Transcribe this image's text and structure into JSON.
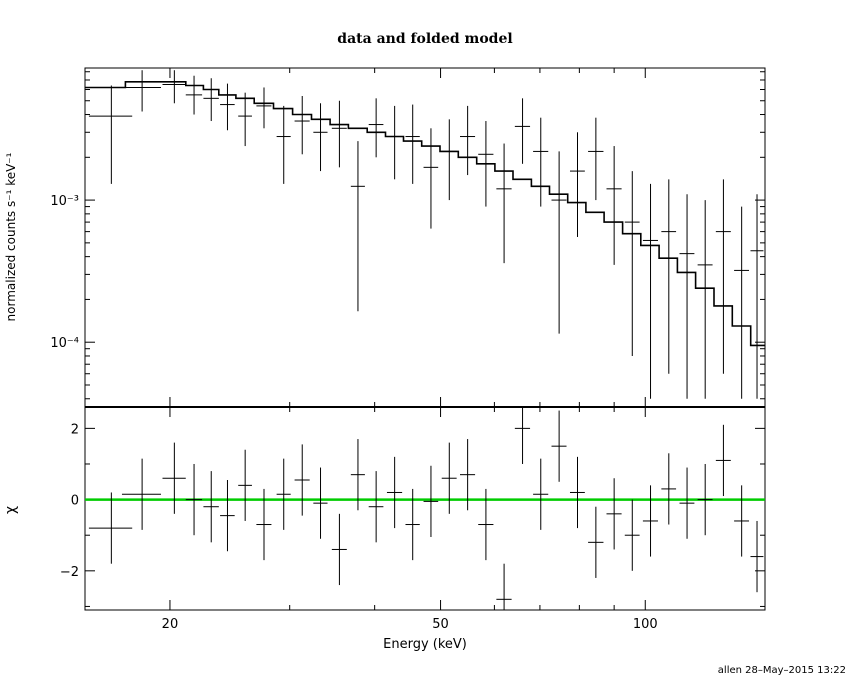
{
  "chart_data": {
    "title": "data and folded model",
    "xlabel": "Energy (keV)",
    "x_scale": "log",
    "xlim": [
      15,
      150
    ],
    "x_ticks": [
      {
        "value": 20,
        "label": "20"
      },
      {
        "value": 50,
        "label": "50"
      },
      {
        "value": 100,
        "label": "100"
      }
    ],
    "panels": [
      {
        "name": "spectrum",
        "type": "line",
        "ylabel": "normalized counts s⁻¹ keV⁻¹",
        "y_scale": "log",
        "ylim": [
          3.5e-05,
          0.0085
        ],
        "y_ticks": [
          {
            "value": 0.001,
            "label": "10⁻³"
          },
          {
            "value": 0.0001,
            "label": "10⁻⁴"
          }
        ],
        "data_points": [
          {
            "x": 16.4,
            "xerr": 1.2,
            "y": 0.0039,
            "ylo": 0.0013,
            "yhi": 0.0064
          },
          {
            "x": 18.2,
            "xerr": 1.2,
            "y": 0.0062,
            "ylo": 0.0042,
            "yhi": 0.0082
          },
          {
            "x": 20.3,
            "xerr": 0.8,
            "y": 0.0065,
            "ylo": 0.0048,
            "yhi": 0.0082
          },
          {
            "x": 21.7,
            "xerr": 0.6,
            "y": 0.0055,
            "ylo": 0.004,
            "yhi": 0.0075
          },
          {
            "x": 23.0,
            "xerr": 0.6,
            "y": 0.0052,
            "ylo": 0.0036,
            "yhi": 0.0072
          },
          {
            "x": 24.3,
            "xerr": 0.6,
            "y": 0.0047,
            "ylo": 0.0031,
            "yhi": 0.0066
          },
          {
            "x": 25.8,
            "xerr": 0.6,
            "y": 0.0039,
            "ylo": 0.0024,
            "yhi": 0.0057
          },
          {
            "x": 27.5,
            "xerr": 0.7,
            "y": 0.0046,
            "ylo": 0.0032,
            "yhi": 0.0062
          },
          {
            "x": 29.4,
            "xerr": 0.7,
            "y": 0.0028,
            "ylo": 0.0013,
            "yhi": 0.0046
          },
          {
            "x": 31.3,
            "xerr": 0.8,
            "y": 0.0036,
            "ylo": 0.0021,
            "yhi": 0.0054
          },
          {
            "x": 33.3,
            "xerr": 0.8,
            "y": 0.003,
            "ylo": 0.0016,
            "yhi": 0.0048
          },
          {
            "x": 35.5,
            "xerr": 0.9,
            "y": 0.0032,
            "ylo": 0.0017,
            "yhi": 0.005
          },
          {
            "x": 37.8,
            "xerr": 0.9,
            "y": 0.00125,
            "ylo": 0.000165,
            "yhi": 0.0026
          },
          {
            "x": 40.2,
            "xerr": 1.0,
            "y": 0.0034,
            "ylo": 0.002,
            "yhi": 0.0052
          },
          {
            "x": 42.8,
            "xerr": 1.1,
            "y": 0.0028,
            "ylo": 0.0014,
            "yhi": 0.0046
          },
          {
            "x": 45.5,
            "xerr": 1.1,
            "y": 0.0028,
            "ylo": 0.0013,
            "yhi": 0.0047
          },
          {
            "x": 48.4,
            "xerr": 1.2,
            "y": 0.0017,
            "ylo": 0.00063,
            "yhi": 0.0032
          },
          {
            "x": 51.5,
            "xerr": 1.3,
            "y": 0.0022,
            "ylo": 0.001,
            "yhi": 0.0037
          },
          {
            "x": 54.8,
            "xerr": 1.4,
            "y": 0.0028,
            "ylo": 0.0015,
            "yhi": 0.0046
          },
          {
            "x": 58.3,
            "xerr": 1.5,
            "y": 0.0021,
            "ylo": 0.0009,
            "yhi": 0.0036
          },
          {
            "x": 62.0,
            "xerr": 1.6,
            "y": 0.0012,
            "ylo": 0.00036,
            "yhi": 0.0025
          },
          {
            "x": 66.0,
            "xerr": 1.7,
            "y": 0.0033,
            "ylo": 0.0018,
            "yhi": 0.0052
          },
          {
            "x": 70.2,
            "xerr": 1.8,
            "y": 0.0022,
            "ylo": 0.0009,
            "yhi": 0.0038
          },
          {
            "x": 74.7,
            "xerr": 1.9,
            "y": 0.001,
            "ylo": 0.000115,
            "yhi": 0.0022
          },
          {
            "x": 79.5,
            "xerr": 2.0,
            "y": 0.0016,
            "ylo": 0.00055,
            "yhi": 0.003
          },
          {
            "x": 84.6,
            "xerr": 2.2,
            "y": 0.0022,
            "ylo": 0.001,
            "yhi": 0.0038
          },
          {
            "x": 90.0,
            "xerr": 2.3,
            "y": 0.0012,
            "ylo": 0.00035,
            "yhi": 0.0024
          },
          {
            "x": 95.7,
            "xerr": 2.4,
            "y": 0.0007,
            "ylo": 8e-05,
            "yhi": 0.0016
          },
          {
            "x": 101.8,
            "xerr": 2.6,
            "y": 0.00052,
            "ylo": 4e-05,
            "yhi": 0.0013
          },
          {
            "x": 108.3,
            "xerr": 2.7,
            "y": 0.0006,
            "ylo": 6e-05,
            "yhi": 0.0014
          },
          {
            "x": 115.2,
            "xerr": 2.9,
            "y": 0.00042,
            "ylo": 4e-05,
            "yhi": 0.0011
          },
          {
            "x": 122.5,
            "xerr": 3.1,
            "y": 0.00035,
            "ylo": 4e-05,
            "yhi": 0.001
          },
          {
            "x": 130.3,
            "xerr": 3.3,
            "y": 0.0006,
            "ylo": 6e-05,
            "yhi": 0.0014
          },
          {
            "x": 138.6,
            "xerr": 3.5,
            "y": 0.00032,
            "ylo": 4e-05,
            "yhi": 0.0009
          },
          {
            "x": 146.0,
            "xerr": 3.2,
            "y": 0.00044,
            "ylo": 4e-05,
            "yhi": 0.0011
          }
        ],
        "model_steps": [
          {
            "x": 15.0,
            "y": 0.0062
          },
          {
            "x": 17.2,
            "y": 0.0068
          },
          {
            "x": 19.5,
            "y": 0.0068
          },
          {
            "x": 21.1,
            "y": 0.0064
          },
          {
            "x": 22.4,
            "y": 0.006
          },
          {
            "x": 23.6,
            "y": 0.0055
          },
          {
            "x": 25.0,
            "y": 0.0052
          },
          {
            "x": 26.6,
            "y": 0.0048
          },
          {
            "x": 28.4,
            "y": 0.0044
          },
          {
            "x": 30.3,
            "y": 0.004
          },
          {
            "x": 32.3,
            "y": 0.0037
          },
          {
            "x": 34.4,
            "y": 0.0034
          },
          {
            "x": 36.6,
            "y": 0.0032
          },
          {
            "x": 39.0,
            "y": 0.003
          },
          {
            "x": 41.5,
            "y": 0.0028
          },
          {
            "x": 44.1,
            "y": 0.0026
          },
          {
            "x": 46.9,
            "y": 0.0024
          },
          {
            "x": 49.9,
            "y": 0.0022
          },
          {
            "x": 53.1,
            "y": 0.002
          },
          {
            "x": 56.5,
            "y": 0.0018
          },
          {
            "x": 60.1,
            "y": 0.0016
          },
          {
            "x": 63.9,
            "y": 0.0014
          },
          {
            "x": 68.0,
            "y": 0.00125
          },
          {
            "x": 72.3,
            "y": 0.0011
          },
          {
            "x": 76.9,
            "y": 0.00096
          },
          {
            "x": 81.8,
            "y": 0.00082
          },
          {
            "x": 87.0,
            "y": 0.0007
          },
          {
            "x": 92.6,
            "y": 0.00058
          },
          {
            "x": 98.5,
            "y": 0.00048
          },
          {
            "x": 104.8,
            "y": 0.00039
          },
          {
            "x": 111.5,
            "y": 0.00031
          },
          {
            "x": 118.6,
            "y": 0.00024
          },
          {
            "x": 126.2,
            "y": 0.00018
          },
          {
            "x": 134.3,
            "y": 0.00013
          },
          {
            "x": 142.9,
            "y": 9.5e-05
          },
          {
            "x": 150.0,
            "y": 7.5e-05
          }
        ]
      },
      {
        "name": "residuals",
        "type": "scatter",
        "ylabel": "χ",
        "y_scale": "linear",
        "ylim": [
          -3.1,
          2.6
        ],
        "y_ticks": [
          {
            "value": 2,
            "label": "2"
          },
          {
            "value": 0,
            "label": "0"
          },
          {
            "value": -2,
            "label": "−2"
          }
        ],
        "zero_line_color": "#00cc00",
        "data_points": [
          {
            "x": 16.4,
            "xerr": 1.2,
            "y": -0.8
          },
          {
            "x": 18.2,
            "xerr": 1.2,
            "y": 0.15
          },
          {
            "x": 20.3,
            "xerr": 0.8,
            "y": 0.6
          },
          {
            "x": 21.7,
            "xerr": 0.6,
            "y": 0.0
          },
          {
            "x": 23.0,
            "xerr": 0.6,
            "y": -0.2
          },
          {
            "x": 24.3,
            "xerr": 0.6,
            "y": -0.45
          },
          {
            "x": 25.8,
            "xerr": 0.6,
            "y": 0.4
          },
          {
            "x": 27.5,
            "xerr": 0.7,
            "y": -0.7
          },
          {
            "x": 29.4,
            "xerr": 0.7,
            "y": 0.15
          },
          {
            "x": 31.3,
            "xerr": 0.8,
            "y": 0.55
          },
          {
            "x": 33.3,
            "xerr": 0.8,
            "y": -0.1
          },
          {
            "x": 35.5,
            "xerr": 0.9,
            "y": -1.4
          },
          {
            "x": 37.8,
            "xerr": 0.9,
            "y": 0.7
          },
          {
            "x": 40.2,
            "xerr": 1.0,
            "y": -0.2
          },
          {
            "x": 42.8,
            "xerr": 1.1,
            "y": 0.2
          },
          {
            "x": 45.5,
            "xerr": 1.1,
            "y": -0.7
          },
          {
            "x": 48.4,
            "xerr": 1.2,
            "y": -0.05
          },
          {
            "x": 51.5,
            "xerr": 1.3,
            "y": 0.6
          },
          {
            "x": 54.8,
            "xerr": 1.4,
            "y": 0.7
          },
          {
            "x": 58.3,
            "xerr": 1.5,
            "y": -0.7
          },
          {
            "x": 62.0,
            "xerr": 1.6,
            "y": -2.8
          },
          {
            "x": 66.0,
            "xerr": 1.7,
            "y": 2.0
          },
          {
            "x": 70.2,
            "xerr": 1.8,
            "y": 0.15
          },
          {
            "x": 74.7,
            "xerr": 1.9,
            "y": 1.5
          },
          {
            "x": 79.5,
            "xerr": 2.0,
            "y": 0.2
          },
          {
            "x": 84.6,
            "xerr": 2.2,
            "y": -1.2
          },
          {
            "x": 90.0,
            "xerr": 2.3,
            "y": -0.4
          },
          {
            "x": 95.7,
            "xerr": 2.4,
            "y": -1.0
          },
          {
            "x": 101.8,
            "xerr": 2.6,
            "y": -0.6
          },
          {
            "x": 108.3,
            "xerr": 2.7,
            "y": 0.3
          },
          {
            "x": 115.2,
            "xerr": 2.9,
            "y": -0.1
          },
          {
            "x": 122.5,
            "xerr": 3.1,
            "y": 0.0
          },
          {
            "x": 130.3,
            "xerr": 3.3,
            "y": 1.1
          },
          {
            "x": 138.6,
            "xerr": 3.5,
            "y": -0.6
          },
          {
            "x": 146.0,
            "xerr": 3.2,
            "y": -1.6
          }
        ]
      }
    ]
  },
  "footer": {
    "stamp": "allen 28–May–2015 13:22"
  }
}
